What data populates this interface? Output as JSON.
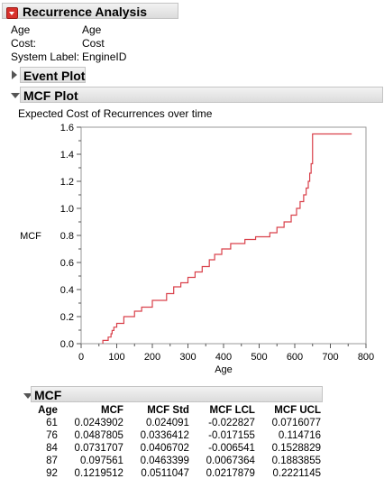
{
  "report": {
    "title": "Recurrence Analysis",
    "info": [
      {
        "label": "Age",
        "value": "Age"
      },
      {
        "label": "Cost:",
        "value": "Cost"
      },
      {
        "label": "System Label:",
        "value": "EngineID"
      }
    ]
  },
  "event_plot": {
    "title": "Event Plot"
  },
  "mcf_plot": {
    "title": "MCF Plot",
    "subtitle": "Expected Cost of Recurrences over time"
  },
  "mcf_table": {
    "title": "MCF",
    "columns": [
      "Age",
      "MCF",
      "MCF Std",
      "MCF LCL",
      "MCF UCL"
    ],
    "rows": [
      [
        "61",
        "0.0243902",
        "0.024091",
        "-0.022827",
        "0.0716077"
      ],
      [
        "76",
        "0.0487805",
        "0.0336412",
        "-0.017155",
        "0.114716"
      ],
      [
        "84",
        "0.0731707",
        "0.0406702",
        "-0.006541",
        "0.1528829"
      ],
      [
        "87",
        "0.097561",
        "0.0463399",
        "0.0067364",
        "0.1883855"
      ],
      [
        "92",
        "0.1219512",
        "0.0511047",
        "0.0217879",
        "0.2221145"
      ]
    ]
  },
  "chart_data": {
    "type": "line",
    "step": true,
    "title": "Expected Cost of Recurrences over time",
    "xlabel": "Age",
    "ylabel": "MCF",
    "xlim": [
      0,
      800
    ],
    "ylim": [
      0,
      1.6
    ],
    "xticks": [
      "0",
      "100",
      "200",
      "300",
      "400",
      "500",
      "600",
      "700",
      "800"
    ],
    "yticks": [
      "0.0",
      "0.2",
      "0.4",
      "0.6",
      "0.8",
      "1.0",
      "1.2",
      "1.4",
      "1.6"
    ],
    "line_color": "#d9404a",
    "series": [
      {
        "x": [
          61,
          76,
          84,
          87,
          92,
          100,
          120,
          150,
          170,
          200,
          240,
          260,
          280,
          300,
          320,
          340,
          360,
          375,
          395,
          420,
          460,
          490,
          530,
          550,
          570,
          590,
          605,
          615,
          625,
          632,
          638,
          642,
          646,
          650,
          760
        ],
        "y": [
          0.0244,
          0.0488,
          0.0732,
          0.0976,
          0.122,
          0.15,
          0.2,
          0.24,
          0.27,
          0.32,
          0.37,
          0.42,
          0.45,
          0.49,
          0.53,
          0.57,
          0.62,
          0.66,
          0.7,
          0.74,
          0.77,
          0.79,
          0.82,
          0.86,
          0.9,
          0.95,
          1.0,
          1.05,
          1.1,
          1.15,
          1.2,
          1.26,
          1.33,
          1.55,
          1.55
        ]
      }
    ]
  }
}
